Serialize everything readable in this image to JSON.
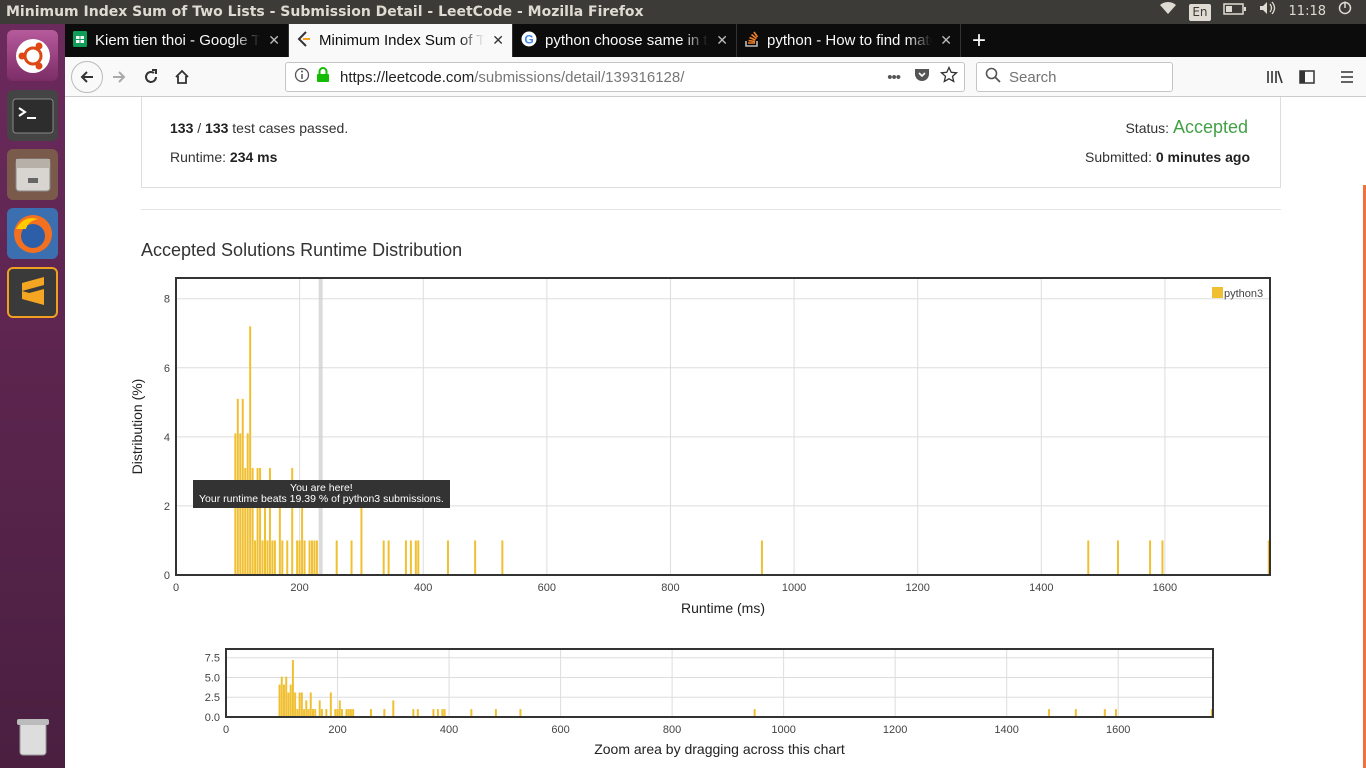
{
  "window": {
    "title": "Minimum Index Sum of Two Lists - Submission Detail - LeetCode - Mozilla Firefox",
    "tray": {
      "keyboard": "En",
      "time": "11:18"
    }
  },
  "launcher": {
    "items": [
      "ubuntu-dash-icon",
      "terminal-icon",
      "files-icon",
      "firefox-icon",
      "sublime-text-icon",
      "trash-icon"
    ]
  },
  "tabs": [
    {
      "label": "Kiem tien thoi - Google Tính",
      "icon": "sheets-icon",
      "active": false
    },
    {
      "label": "Minimum Index Sum of Two",
      "icon": "leetcode-icon",
      "active": true
    },
    {
      "label": "python choose same in two",
      "icon": "google-icon",
      "active": false
    },
    {
      "label": "python - How to find match",
      "icon": "stackoverflow-icon",
      "active": false
    }
  ],
  "nav": {
    "url_host": "https://leetcode.com",
    "url_path": "/submissions/detail/139316128/",
    "search_placeholder": "Search",
    "more": "•••"
  },
  "submission": {
    "passed": "133",
    "sep": " / ",
    "total": "133",
    "passed_suffix": " test cases passed.",
    "runtime_label": "Runtime: ",
    "runtime_value": "234 ms",
    "status_label": "Status: ",
    "status_value": "Accepted",
    "submitted_label": "Submitted: ",
    "submitted_value": "0 minutes ago"
  },
  "heading": "Accepted Solutions Runtime Distribution",
  "tooltip": {
    "line1": "You are here!",
    "line2": "Your runtime beats 19.39 % of python3 submissions."
  },
  "colors": {
    "bar": "#f0c032",
    "accepted": "#43a047",
    "highlight": "#999999"
  },
  "chart_data": [
    {
      "type": "bar",
      "title": "",
      "xlabel": "Runtime (ms)",
      "ylabel": "Distribution (%)",
      "xlim": [
        0,
        1770
      ],
      "ylim": [
        0,
        8.6
      ],
      "xticks": [
        0,
        200,
        400,
        600,
        800,
        1000,
        1200,
        1400,
        1600
      ],
      "yticks": [
        0,
        2,
        4,
        6,
        8
      ],
      "grid": true,
      "legend": "top-right",
      "series": [
        {
          "name": "python3",
          "x": [
            96,
            100,
            104,
            108,
            112,
            116,
            120,
            124,
            128,
            132,
            136,
            140,
            144,
            148,
            152,
            156,
            160,
            168,
            172,
            180,
            188,
            196,
            200,
            204,
            208,
            216,
            220,
            224,
            228,
            260,
            284,
            300,
            336,
            344,
            372,
            380,
            388,
            392,
            440,
            484,
            528,
            948,
            1476,
            1524,
            1576,
            1596,
            1768
          ],
          "values": [
            4.1,
            5.1,
            4.1,
            5.1,
            3.1,
            4.1,
            7.2,
            3.1,
            1.0,
            3.1,
            3.1,
            1.0,
            2.1,
            1.0,
            3.1,
            1.0,
            1.0,
            2.1,
            1.0,
            1.0,
            3.1,
            1.0,
            1.0,
            2.1,
            1.0,
            1.0,
            1.0,
            1.0,
            1.0,
            1.0,
            1.0,
            2.1,
            1.0,
            1.0,
            1.0,
            1.0,
            1.0,
            1.0,
            1.0,
            1.0,
            1.0,
            1.0,
            1.0,
            1.0,
            1.0,
            1.0,
            1.0
          ]
        }
      ],
      "marker_x": 234
    },
    {
      "type": "bar",
      "title": "",
      "xlabel": "Zoom area by dragging across this chart",
      "ylabel": "",
      "xlim": [
        0,
        1770
      ],
      "ylim": [
        0,
        8.6
      ],
      "xticks": [
        0,
        200,
        400,
        600,
        800,
        1000,
        1200,
        1400,
        1600
      ],
      "yticks": [
        0.0,
        2.5,
        5.0,
        7.5
      ],
      "ytick_labels": [
        "0.0",
        "2.5",
        "5.0",
        "7.5"
      ],
      "grid": true,
      "series": [
        {
          "name": "python3",
          "same_as_main": true
        }
      ]
    }
  ]
}
